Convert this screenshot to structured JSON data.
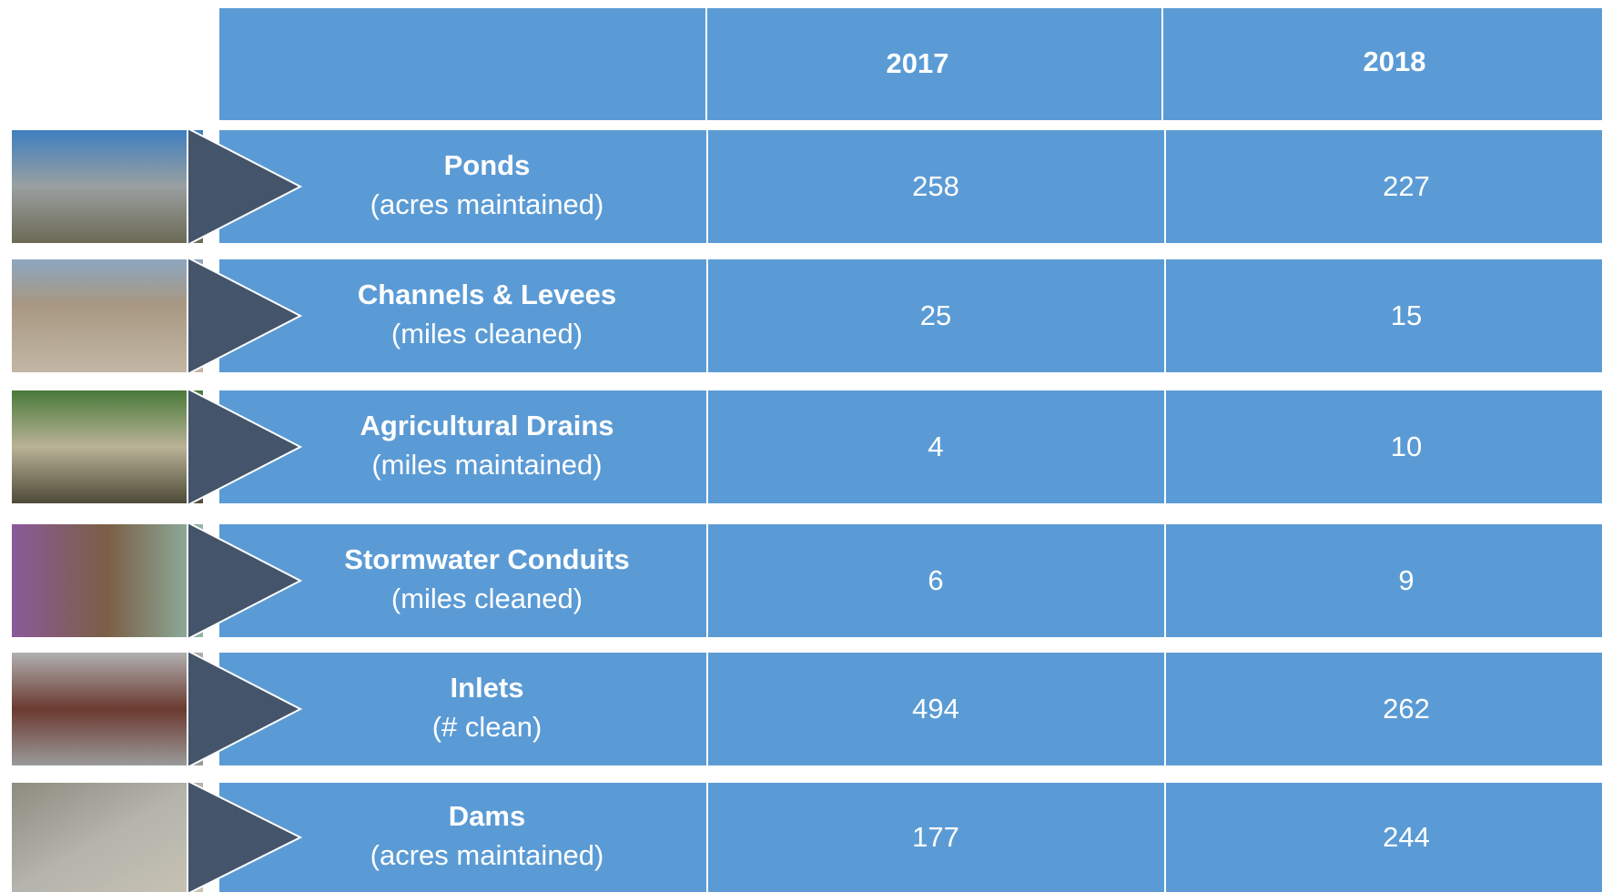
{
  "table": {
    "columns": [
      "2017",
      "2018"
    ],
    "rows": [
      {
        "name": "Ponds",
        "unit": "(acres maintained)",
        "values": [
          258,
          227
        ]
      },
      {
        "name": "Channels & Levees",
        "unit": "(miles cleaned)",
        "values": [
          25,
          15
        ]
      },
      {
        "name": "Agricultural Drains",
        "unit": "(miles maintained)",
        "values": [
          4,
          10
        ]
      },
      {
        "name": "Stormwater Conduits",
        "unit": "(miles cleaned)",
        "values": [
          6,
          9
        ]
      },
      {
        "name": "Inlets",
        "unit": "(# clean)",
        "values": [
          494,
          262
        ]
      },
      {
        "name": "Dams",
        "unit": "(acres maintained)",
        "values": [
          177,
          244
        ]
      }
    ]
  }
}
